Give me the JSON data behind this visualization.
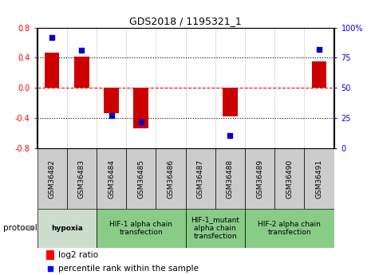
{
  "title": "GDS2018 / 1195321_1",
  "samples": [
    "GSM36482",
    "GSM36483",
    "GSM36484",
    "GSM36485",
    "GSM36486",
    "GSM36487",
    "GSM36488",
    "GSM36489",
    "GSM36490",
    "GSM36491"
  ],
  "log2_ratio": [
    0.47,
    0.42,
    -0.33,
    -0.53,
    0.0,
    0.0,
    -0.37,
    0.0,
    0.0,
    0.35
  ],
  "percentile_rank": [
    92,
    81,
    27,
    22,
    null,
    null,
    11,
    null,
    null,
    82
  ],
  "ylim_left": [
    -0.8,
    0.8
  ],
  "ylim_right": [
    0,
    100
  ],
  "yticks_left": [
    -0.8,
    -0.4,
    0.0,
    0.4,
    0.8
  ],
  "yticks_right": [
    0,
    25,
    50,
    75,
    100
  ],
  "ytick_labels_right": [
    "0",
    "25",
    "50",
    "75",
    "100%"
  ],
  "hlines_dotted": [
    -0.4,
    0.4
  ],
  "hline_dashed": 0.0,
  "bar_color": "#cc0000",
  "dot_color": "#0000cc",
  "protocols": [
    {
      "label": "hypoxia",
      "start": 0,
      "end": 2,
      "color": "#ccddcc",
      "bold": true
    },
    {
      "label": "HIF-1 alpha chain\ntransfection",
      "start": 2,
      "end": 5,
      "color": "#aaddaa",
      "bold": false
    },
    {
      "label": "HIF-1_mutant\nalpha chain\ntransfection",
      "start": 5,
      "end": 7,
      "color": "#aaddaa",
      "bold": false
    },
    {
      "label": "HIF-2 alpha chain\ntransfection",
      "start": 7,
      "end": 10,
      "color": "#aaddaa",
      "bold": false
    }
  ],
  "protocol_label": "protocol",
  "legend_red": "log2 ratio",
  "legend_blue": "percentile rank within the sample",
  "bar_width": 0.5,
  "dot_size": 25,
  "sample_box_color": "#cccccc"
}
